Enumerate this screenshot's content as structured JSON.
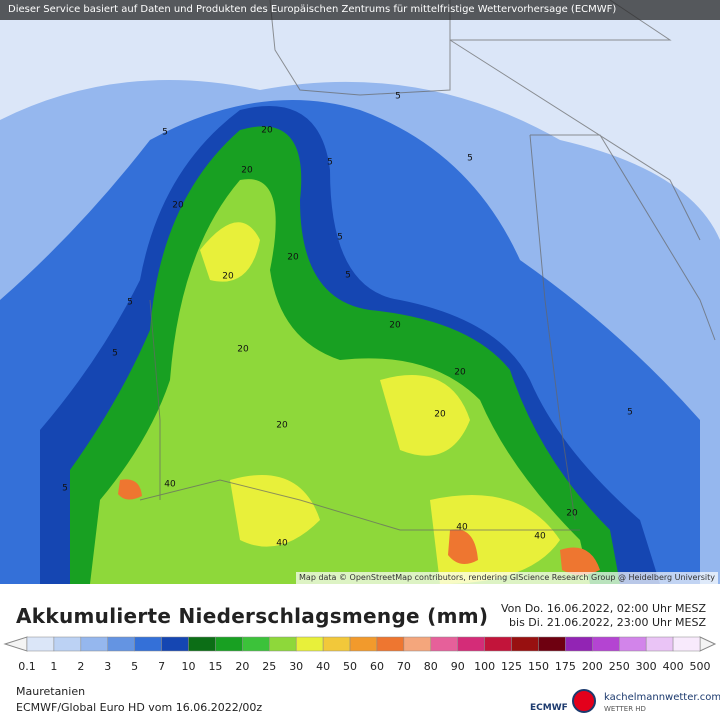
{
  "header": {
    "notice": "Dieser Service basiert auf Daten und Produkten des Europäischen Zentrums für mittelfristige Wettervorhersage (ECMWF)"
  },
  "map": {
    "attribution": "Map data © OpenStreetMap contributors, rendering GIScience Research Group @ Heidelberg University",
    "contour_labels": [
      "5",
      "5",
      "5",
      "5",
      "5",
      "5",
      "5",
      "5",
      "5",
      "20",
      "20",
      "20",
      "20",
      "20",
      "20",
      "20",
      "20",
      "20",
      "20",
      "40",
      "40",
      "40",
      "40",
      "20",
      "5"
    ]
  },
  "legend": {
    "title": "Akkumulierte Niederschlagsmenge (mm)",
    "period_from": "Von Do. 16.06.2022, 02:00 Uhr MESZ",
    "period_to": "bis Di. 21.06.2022, 23:00 Uhr MESZ",
    "levels": [
      "0.1",
      "1",
      "2",
      "3",
      "5",
      "7",
      "10",
      "15",
      "20",
      "25",
      "30",
      "40",
      "50",
      "60",
      "70",
      "80",
      "90",
      "100",
      "125",
      "150",
      "175",
      "200",
      "250",
      "300",
      "400",
      "500"
    ],
    "colors": [
      "#dbe6f8",
      "#bcd2f4",
      "#95b7ee",
      "#6494e2",
      "#3470d8",
      "#1546b2",
      "#0c6e16",
      "#18a022",
      "#3cc23a",
      "#8ed83a",
      "#e8f03a",
      "#f2c83a",
      "#f29a2c",
      "#ee7630",
      "#f4a67c",
      "#e6609a",
      "#d42c78",
      "#c2143a",
      "#981010",
      "#6e0010",
      "#9224b4",
      "#b444d2",
      "#d284ea",
      "#eac4f6",
      "#f8eafc"
    ]
  },
  "footer": {
    "region": "Mauretanien",
    "model": "ECMWF/Global Euro HD vom  16.06.2022/00z"
  },
  "logos": {
    "ecmwf": "ECMWF",
    "site": "kachelmannwetter.com",
    "site_sub": "WETTER HD"
  }
}
